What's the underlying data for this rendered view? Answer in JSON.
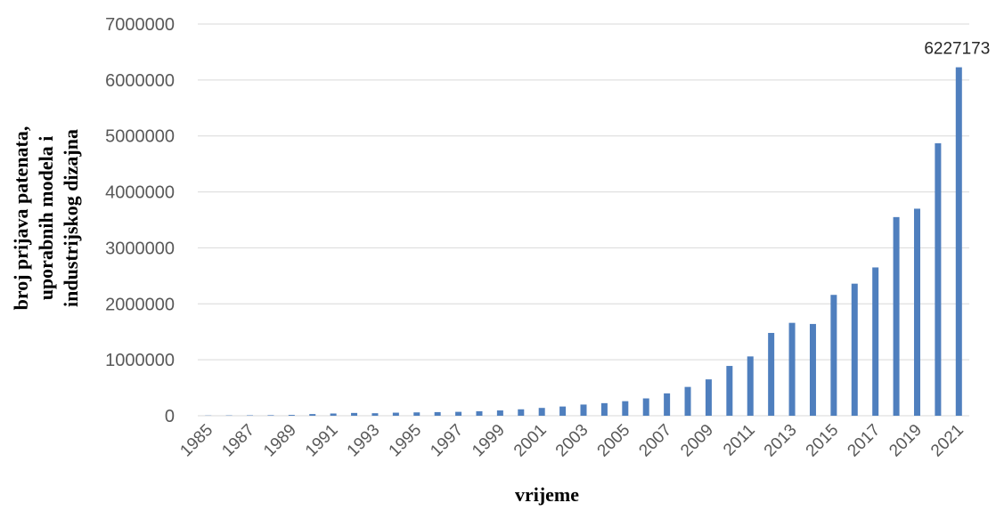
{
  "chart_data": {
    "type": "bar",
    "xlabel": "vrijeme",
    "ylabel": [
      "broj prijava patenata,",
      "uporabnih modela i",
      "industrijskog dizajna"
    ],
    "ylim": [
      0,
      7000000
    ],
    "yticks": [
      0,
      1000000,
      2000000,
      3000000,
      4000000,
      5000000,
      6000000,
      7000000
    ],
    "grid": true,
    "color": "#4f7fbe",
    "categories": [
      "1985",
      "1986",
      "1987",
      "1988",
      "1989",
      "1990",
      "1991",
      "1992",
      "1993",
      "1994",
      "1995",
      "1996",
      "1997",
      "1998",
      "1999",
      "2000",
      "2001",
      "2002",
      "2003",
      "2004",
      "2005",
      "2006",
      "2007",
      "2008",
      "2009",
      "2010",
      "2011",
      "2012",
      "2013",
      "2014",
      "2015",
      "2016",
      "2017",
      "2018",
      "2019",
      "2020",
      "2021"
    ],
    "x_tick_labels": [
      "1985",
      "1987",
      "1989",
      "1991",
      "1993",
      "1995",
      "1997",
      "1999",
      "2001",
      "2003",
      "2005",
      "2007",
      "2009",
      "2011",
      "2013",
      "2015",
      "2017",
      "2019",
      "2021"
    ],
    "values": [
      4000,
      6000,
      8000,
      10000,
      15000,
      30000,
      40000,
      50000,
      45000,
      55000,
      60000,
      65000,
      70000,
      80000,
      95000,
      115000,
      140000,
      165000,
      200000,
      225000,
      260000,
      310000,
      400000,
      515000,
      650000,
      890000,
      1060000,
      1480000,
      1660000,
      1640000,
      2160000,
      2360000,
      2650000,
      3550000,
      3700000,
      4870000,
      6227173
    ],
    "data_labels": [
      {
        "category": "2021",
        "text": "6227173"
      }
    ]
  }
}
